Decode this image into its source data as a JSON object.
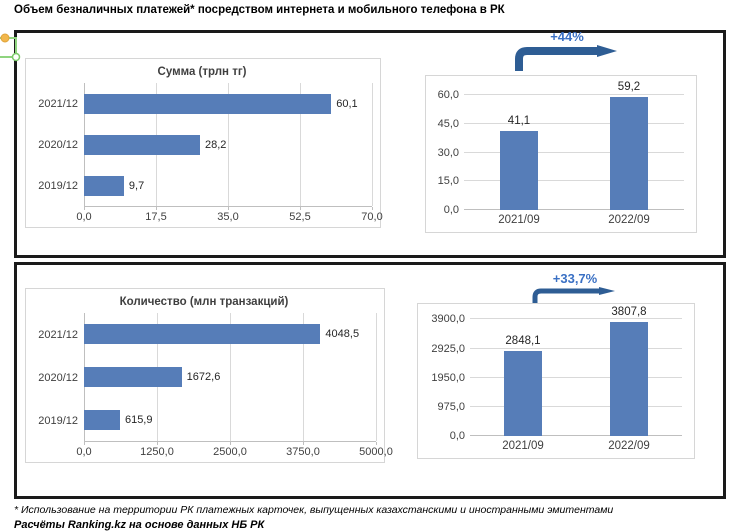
{
  "page": {
    "title": "Объем безналичных платежей* посредством интернета и мобильного телефона в РК",
    "footnote": "* Использование на территории РК платежных карточек, выпущенных казахстанскими и иностранными эмитентами",
    "source": "Расчёты Ranking.kz на основе данных НБ РК"
  },
  "colors": {
    "bar": "#567DB8",
    "arrow": "#2E5D94",
    "growth": "#3A70C4",
    "panel_border": "#D6D6D6",
    "grid": "#D9D9D9",
    "axis": "#BFBFBF",
    "chart_text": "#404040",
    "frame": "#1A1A1A"
  },
  "chart_data": [
    {
      "type": "bar",
      "orientation": "horizontal",
      "title": "Сумма (трлн тг)",
      "categories": [
        "2021/12",
        "2020/12",
        "2019/12"
      ],
      "values": [
        60.1,
        28.2,
        9.7
      ],
      "value_labels": [
        "60,1",
        "28,2",
        "9,7"
      ],
      "xlim": [
        0,
        70
      ],
      "xticks": [
        0,
        17.5,
        35,
        52.5,
        70
      ],
      "xtick_labels": [
        "0,0",
        "17,5",
        "35,0",
        "52,5",
        "70,0"
      ],
      "grid": true,
      "legend": false
    },
    {
      "type": "bar",
      "orientation": "vertical",
      "title": "",
      "growth_label": "+44%",
      "categories": [
        "2021/09",
        "2022/09"
      ],
      "values": [
        41.1,
        59.2
      ],
      "value_labels": [
        "41,1",
        "59,2"
      ],
      "ylim": [
        0,
        68
      ],
      "yticks": [
        0,
        15,
        30,
        45,
        60
      ],
      "ytick_labels": [
        "0,0",
        "15,0",
        "30,0",
        "45,0",
        "60,0"
      ],
      "axis_max_label": 60,
      "grid": true,
      "legend": false
    },
    {
      "type": "bar",
      "orientation": "horizontal",
      "title": "Количество (млн транзакций)",
      "categories": [
        "2021/12",
        "2020/12",
        "2019/12"
      ],
      "values": [
        4048.5,
        1672.6,
        615.9
      ],
      "value_labels": [
        "4048,5",
        "1672,6",
        "615,9"
      ],
      "xlim": [
        0,
        5000
      ],
      "xticks": [
        0,
        1250,
        2500,
        3750,
        5000
      ],
      "xtick_labels": [
        "0,0",
        "1250,0",
        "2500,0",
        "3750,0",
        "5000,0"
      ],
      "grid": true,
      "legend": false
    },
    {
      "type": "bar",
      "orientation": "vertical",
      "title": "",
      "growth_label": "+33,7%",
      "categories": [
        "2021/09",
        "2022/09"
      ],
      "values": [
        2848.1,
        3807.8
      ],
      "value_labels": [
        "2848,1",
        "3807,8"
      ],
      "ylim": [
        0,
        4280
      ],
      "yticks": [
        0,
        975,
        1950,
        2925,
        3900
      ],
      "ytick_labels": [
        "0,0",
        "975,0",
        "1950,0",
        "2925,0",
        "3900,0"
      ],
      "axis_max_label": 3900,
      "grid": true,
      "legend": false
    }
  ]
}
